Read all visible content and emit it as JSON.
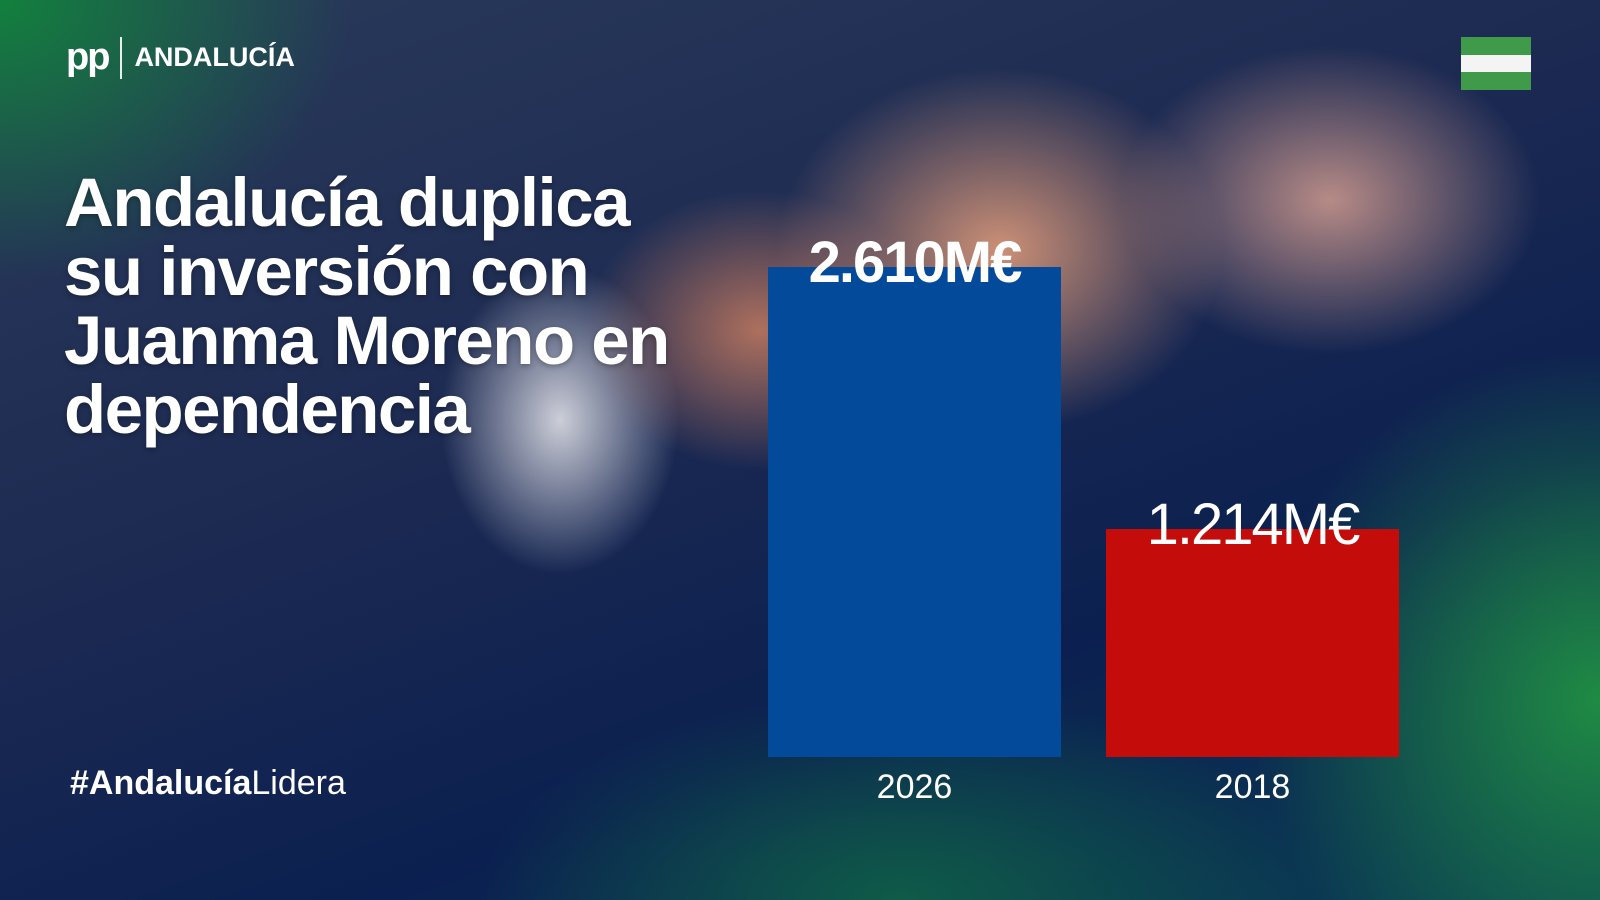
{
  "brand": {
    "logo_text": "pp",
    "region": "ANDALUCÍA"
  },
  "flag_colors": [
    "#3f9a4a",
    "#f4f4f4",
    "#3f9a4a"
  ],
  "title_lines": [
    "Andalucía duplica",
    "su inversión con",
    "Juanma Moreno en",
    "dependencia"
  ],
  "hashtag": {
    "bold": "#Andalucía",
    "regular": "Lidera"
  },
  "chart_data": {
    "type": "bar",
    "categories": [
      "2026",
      "2018"
    ],
    "values": [
      2610,
      1214
    ],
    "value_labels": [
      "2.610M€",
      "1.214M€"
    ],
    "colors": [
      "#034a9a",
      "#c40d0a"
    ],
    "ylim": [
      0,
      2610
    ],
    "grid": false
  }
}
